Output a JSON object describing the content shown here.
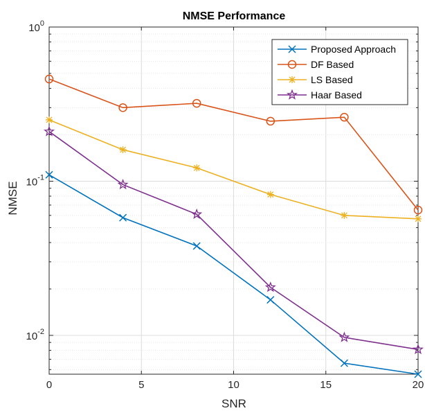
{
  "chart_data": {
    "type": "line",
    "title": "NMSE Performance",
    "xlabel": "SNR",
    "ylabel": "NMSE",
    "x": [
      0,
      4,
      8,
      12,
      16,
      20
    ],
    "xlim": [
      0,
      20
    ],
    "xticks": [
      0,
      5,
      10,
      15,
      20
    ],
    "xtick_labels": [
      "0",
      "5",
      "10",
      "15",
      "20"
    ],
    "yscale": "log",
    "ylim": [
      0.0056,
      1
    ],
    "yticks": [
      {
        "value": 1,
        "base": "10",
        "exp": "0"
      },
      {
        "value": 0.1,
        "base": "10",
        "exp": "-1"
      },
      {
        "value": 0.01,
        "base": "10",
        "exp": "-2"
      }
    ],
    "grid": true,
    "legend_position": "top-right",
    "series": [
      {
        "name": "Proposed Approach",
        "color": "#0072BD",
        "marker": "x",
        "values": [
          0.11,
          0.058,
          0.038,
          0.017,
          0.0066,
          0.0056
        ]
      },
      {
        "name": "DF Based",
        "color": "#D95319",
        "marker": "circle",
        "values": [
          0.46,
          0.3,
          0.32,
          0.245,
          0.26,
          0.065
        ]
      },
      {
        "name": "LS Based",
        "color": "#EDB120",
        "marker": "asterisk",
        "values": [
          0.25,
          0.16,
          0.122,
          0.082,
          0.06,
          0.057
        ]
      },
      {
        "name": "Haar Based",
        "color": "#7E2F8E",
        "marker": "pentagram",
        "values": [
          0.21,
          0.095,
          0.061,
          0.0205,
          0.0097,
          0.0081
        ]
      }
    ]
  }
}
